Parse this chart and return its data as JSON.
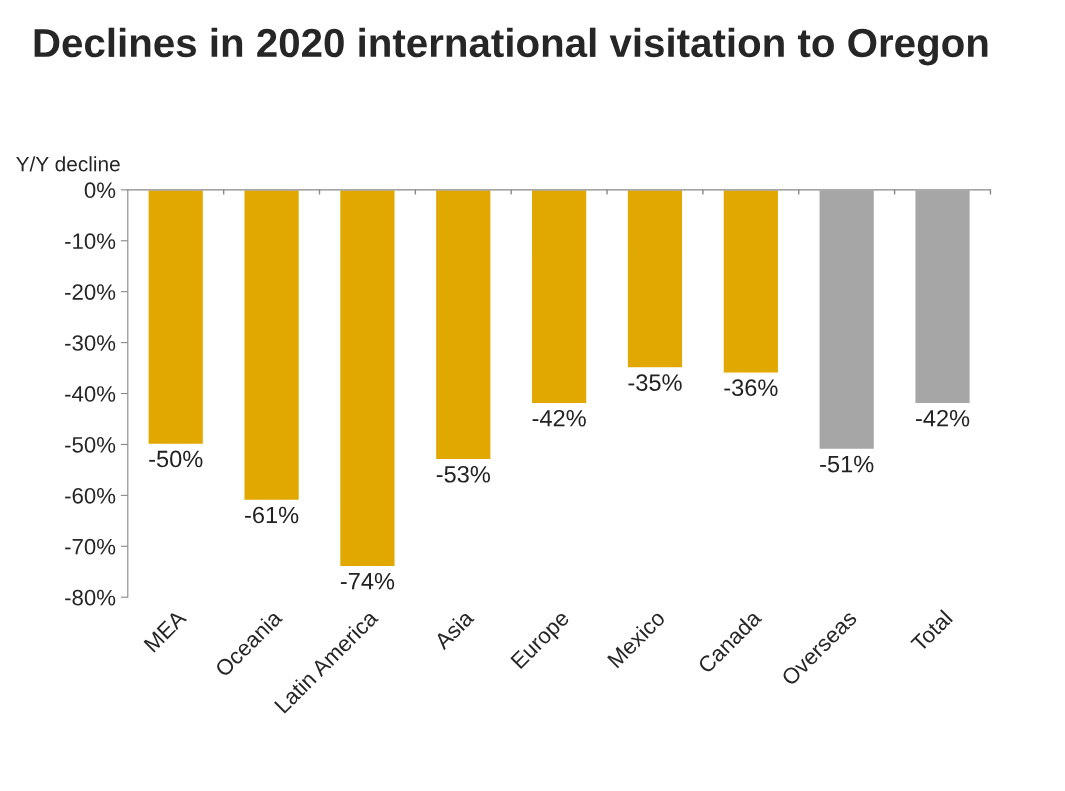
{
  "chart_data": {
    "type": "bar",
    "title": "Declines in 2020 international visitation to Oregon",
    "ylabel": "Y/Y decline",
    "categories": [
      "MEA",
      "Oceania",
      "Latin America",
      "Asia",
      "Europe",
      "Mexico",
      "Canada",
      "Overseas",
      "Total"
    ],
    "values": [
      -50,
      -61,
      -74,
      -53,
      -42,
      -35,
      -36,
      -51,
      -42
    ],
    "colors": [
      "#e0a800",
      "#e0a800",
      "#e0a800",
      "#e0a800",
      "#e0a800",
      "#e0a800",
      "#e0a800",
      "#a6a6a6",
      "#a6a6a6"
    ],
    "value_labels": [
      "-50%",
      "-61%",
      "-74%",
      "-53%",
      "-42%",
      "-35%",
      "-36%",
      "-51%",
      "-42%"
    ],
    "ylim": [
      -80,
      0
    ],
    "yticks": [
      {
        "value": 0,
        "label": "0%"
      },
      {
        "value": -10,
        "label": "-10%"
      },
      {
        "value": -20,
        "label": "-20%"
      },
      {
        "value": -30,
        "label": "-30%"
      },
      {
        "value": -40,
        "label": "-40%"
      },
      {
        "value": -50,
        "label": "-50%"
      },
      {
        "value": -60,
        "label": "-60%"
      },
      {
        "value": -70,
        "label": "-70%"
      },
      {
        "value": -80,
        "label": "-80%"
      }
    ],
    "grid": false,
    "legend": false
  }
}
